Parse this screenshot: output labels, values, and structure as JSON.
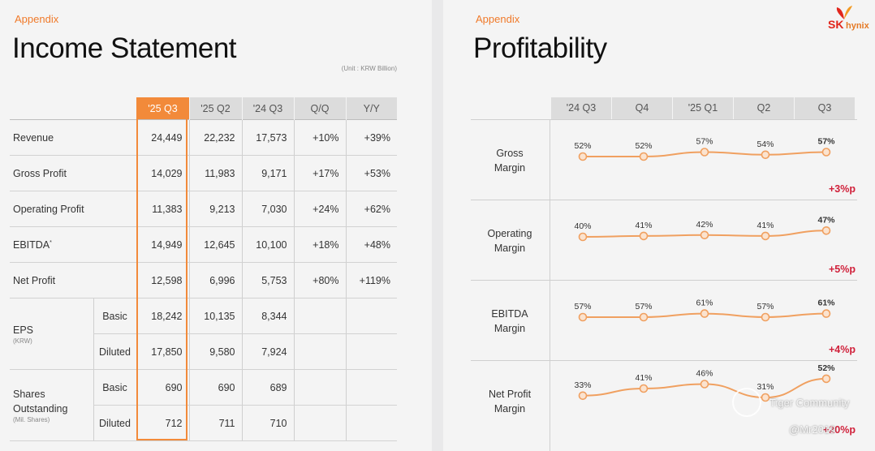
{
  "income": {
    "kicker": "Appendix",
    "title": "Income Statement",
    "unit": "(Unit : KRW Billion)",
    "columns": [
      "'25 Q3",
      "'25 Q2",
      "'24 Q3",
      "Q/Q",
      "Y/Y"
    ],
    "rows": [
      {
        "label": "Revenue",
        "values": [
          "24,449",
          "22,232",
          "17,573",
          "+10%",
          "+39%"
        ]
      },
      {
        "label": "Gross Profit",
        "values": [
          "14,029",
          "11,983",
          "9,171",
          "+17%",
          "+53%"
        ]
      },
      {
        "label": "Operating Profit",
        "values": [
          "11,383",
          "9,213",
          "7,030",
          "+24%",
          "+62%"
        ]
      },
      {
        "label": "EBITDA",
        "label_sup": "*",
        "values": [
          "14,949",
          "12,645",
          "10,100",
          "+18%",
          "+48%"
        ]
      },
      {
        "label": "Net Profit",
        "values": [
          "12,598",
          "6,996",
          "5,753",
          "+80%",
          "+119%"
        ]
      }
    ],
    "eps": {
      "label": "EPS",
      "unit": "(KRW)",
      "rows": [
        {
          "sub": "Basic",
          "values": [
            "18,242",
            "10,135",
            "8,344"
          ]
        },
        {
          "sub": "Diluted",
          "values": [
            "17,850",
            "9,580",
            "7,924"
          ]
        }
      ]
    },
    "shares": {
      "label_line1": "Shares",
      "label_line2": "Outstanding",
      "unit": "(Mil. Shares)",
      "rows": [
        {
          "sub": "Basic",
          "values": [
            "690",
            "690",
            "689"
          ]
        },
        {
          "sub": "Diluted",
          "values": [
            "712",
            "711",
            "710"
          ]
        }
      ]
    }
  },
  "profit": {
    "kicker": "Appendix",
    "title": "Profitability",
    "logo": {
      "sk": "SK",
      "hynix": "hynix"
    },
    "watermark": {
      "line1": "Tiger Community",
      "line2": "@Mr2019"
    }
  },
  "chart_data": {
    "type": "line",
    "title": "Profitability",
    "categories": [
      "'24 Q3",
      "Q4",
      "'25 Q1",
      "Q2",
      "Q3"
    ],
    "unit": "%",
    "series": [
      {
        "name": "Gross Margin",
        "label_line1": "Gross",
        "label_line2": "Margin",
        "values": [
          52,
          52,
          57,
          54,
          57
        ],
        "labels": [
          "52%",
          "52%",
          "57%",
          "54%",
          "57%"
        ],
        "change": "+3%p"
      },
      {
        "name": "Operating Margin",
        "label_line1": "Operating",
        "label_line2": "Margin",
        "values": [
          40,
          41,
          42,
          41,
          47
        ],
        "labels": [
          "40%",
          "41%",
          "42%",
          "41%",
          "47%"
        ],
        "change": "+5%p"
      },
      {
        "name": "EBITDA Margin",
        "label_line1": "EBITDA",
        "label_line2": "Margin",
        "values": [
          57,
          57,
          61,
          57,
          61
        ],
        "labels": [
          "57%",
          "57%",
          "61%",
          "57%",
          "61%"
        ],
        "change": "+4%p"
      },
      {
        "name": "Net Profit Margin",
        "label_line1": "Net Profit",
        "label_line2": "Margin",
        "values": [
          33,
          41,
          46,
          31,
          52
        ],
        "labels": [
          "33%",
          "41%",
          "46%",
          "31%",
          "52%"
        ],
        "change": "+20%p"
      }
    ],
    "colors": {
      "line": "#f0a060",
      "marker_fill": "#fbe3cf",
      "change": "#d0203a"
    }
  }
}
